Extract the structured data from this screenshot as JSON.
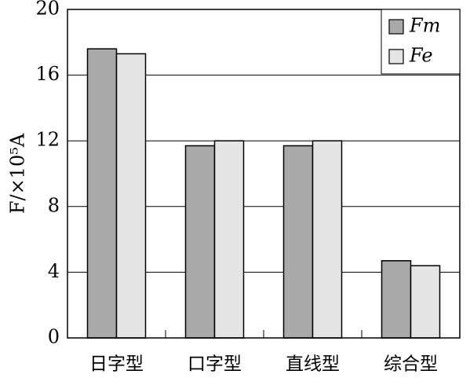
{
  "chart_data": {
    "type": "bar",
    "ylabel": "F/×10⁵A",
    "categories": [
      "日字型",
      "口字型",
      "直线型",
      "综合型"
    ],
    "series": [
      {
        "name": "Fm",
        "color": "#a9a9a9",
        "values": [
          17.6,
          11.7,
          11.7,
          4.7
        ]
      },
      {
        "name": "Fe",
        "color": "#e4e4e4",
        "values": [
          17.3,
          12.0,
          12.0,
          4.4
        ]
      }
    ],
    "ylim": [
      0,
      20
    ],
    "yticks": [
      0,
      4,
      8,
      12,
      16,
      20
    ],
    "grid": true,
    "legend": "upper right"
  }
}
